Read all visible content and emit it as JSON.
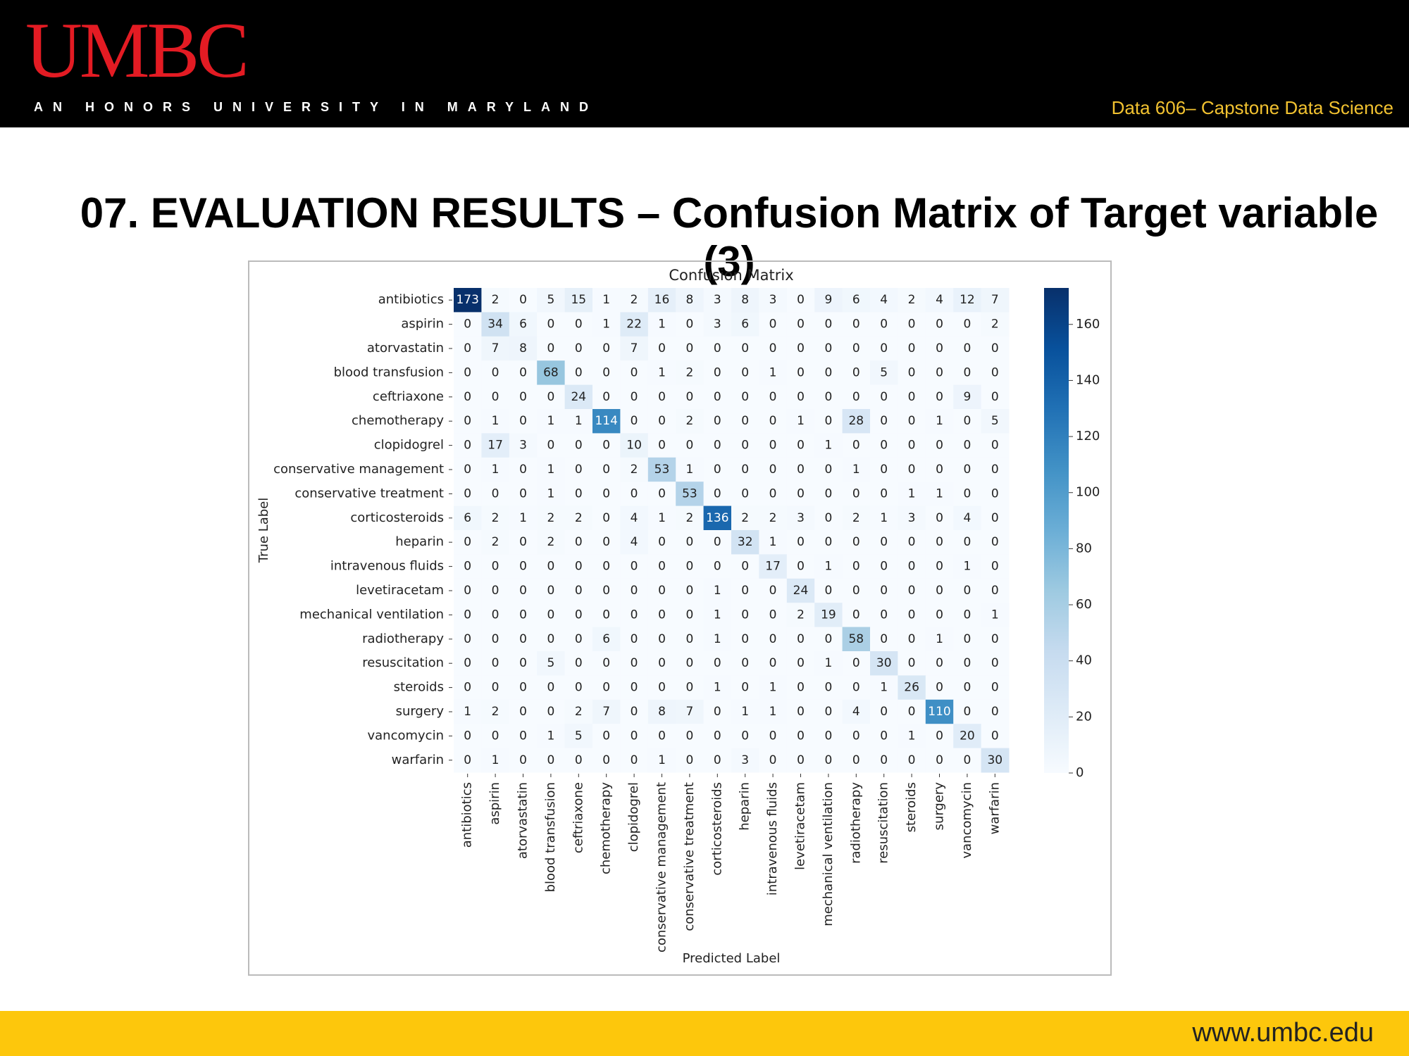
{
  "header": {
    "logo": "UMBC",
    "tagline": "AN HONORS UNIVERSITY IN MARYLAND",
    "course": "Data 606– Capstone Data Science"
  },
  "slide_title": "07. EVALUATION RESULTS – Confusion Matrix of Target variable (3)",
  "footer": {
    "url": "www.umbc.edu"
  },
  "chart_data": {
    "type": "heatmap",
    "title": "Confusion Matrix",
    "x_label": "Predicted Label",
    "y_label": "True Label",
    "cmap": "Blues",
    "categories": [
      "antibiotics",
      "aspirin",
      "atorvastatin",
      "blood transfusion",
      "ceftriaxone",
      "chemotherapy",
      "clopidogrel",
      "conservative management",
      "conservative treatment",
      "corticosteroids",
      "heparin",
      "intravenous fluids",
      "levetiracetam",
      "mechanical ventilation",
      "radiotherapy",
      "resuscitation",
      "steroids",
      "surgery",
      "vancomycin",
      "warfarin"
    ],
    "matrix": [
      [
        173,
        2,
        0,
        5,
        15,
        1,
        2,
        16,
        8,
        3,
        8,
        3,
        0,
        9,
        6,
        4,
        2,
        4,
        12,
        7
      ],
      [
        0,
        34,
        6,
        0,
        0,
        1,
        22,
        1,
        0,
        3,
        6,
        0,
        0,
        0,
        0,
        0,
        0,
        0,
        0,
        2
      ],
      [
        0,
        7,
        8,
        0,
        0,
        0,
        7,
        0,
        0,
        0,
        0,
        0,
        0,
        0,
        0,
        0,
        0,
        0,
        0,
        0
      ],
      [
        0,
        0,
        0,
        68,
        0,
        0,
        0,
        1,
        2,
        0,
        0,
        1,
        0,
        0,
        0,
        5,
        0,
        0,
        0,
        0
      ],
      [
        0,
        0,
        0,
        0,
        24,
        0,
        0,
        0,
        0,
        0,
        0,
        0,
        0,
        0,
        0,
        0,
        0,
        0,
        9,
        0
      ],
      [
        0,
        1,
        0,
        1,
        1,
        114,
        0,
        0,
        2,
        0,
        0,
        0,
        1,
        0,
        28,
        0,
        0,
        1,
        0,
        5
      ],
      [
        0,
        17,
        3,
        0,
        0,
        0,
        10,
        0,
        0,
        0,
        0,
        0,
        0,
        1,
        0,
        0,
        0,
        0,
        0,
        0
      ],
      [
        0,
        1,
        0,
        1,
        0,
        0,
        2,
        53,
        1,
        0,
        0,
        0,
        0,
        0,
        1,
        0,
        0,
        0,
        0,
        0
      ],
      [
        0,
        0,
        0,
        1,
        0,
        0,
        0,
        0,
        53,
        0,
        0,
        0,
        0,
        0,
        0,
        0,
        1,
        1,
        0,
        0
      ],
      [
        6,
        2,
        1,
        2,
        2,
        0,
        4,
        1,
        2,
        136,
        2,
        2,
        3,
        0,
        2,
        1,
        3,
        0,
        4,
        0
      ],
      [
        0,
        2,
        0,
        2,
        0,
        0,
        4,
        0,
        0,
        0,
        32,
        1,
        0,
        0,
        0,
        0,
        0,
        0,
        0,
        0
      ],
      [
        0,
        0,
        0,
        0,
        0,
        0,
        0,
        0,
        0,
        0,
        0,
        17,
        0,
        1,
        0,
        0,
        0,
        0,
        1,
        0
      ],
      [
        0,
        0,
        0,
        0,
        0,
        0,
        0,
        0,
        0,
        1,
        0,
        0,
        24,
        0,
        0,
        0,
        0,
        0,
        0,
        0
      ],
      [
        0,
        0,
        0,
        0,
        0,
        0,
        0,
        0,
        0,
        1,
        0,
        0,
        2,
        19,
        0,
        0,
        0,
        0,
        0,
        1
      ],
      [
        0,
        0,
        0,
        0,
        0,
        6,
        0,
        0,
        0,
        1,
        0,
        0,
        0,
        0,
        58,
        0,
        0,
        1,
        0,
        0
      ],
      [
        0,
        0,
        0,
        5,
        0,
        0,
        0,
        0,
        0,
        0,
        0,
        0,
        0,
        1,
        0,
        30,
        0,
        0,
        0,
        0
      ],
      [
        0,
        0,
        0,
        0,
        0,
        0,
        0,
        0,
        0,
        1,
        0,
        1,
        0,
        0,
        0,
        1,
        26,
        0,
        0,
        0
      ],
      [
        1,
        2,
        0,
        0,
        2,
        7,
        0,
        8,
        7,
        0,
        1,
        1,
        0,
        0,
        4,
        0,
        0,
        110,
        0,
        0
      ],
      [
        0,
        0,
        0,
        1,
        5,
        0,
        0,
        0,
        0,
        0,
        0,
        0,
        0,
        0,
        0,
        0,
        1,
        0,
        20,
        0
      ],
      [
        0,
        1,
        0,
        0,
        0,
        0,
        0,
        1,
        0,
        0,
        3,
        0,
        0,
        0,
        0,
        0,
        0,
        0,
        0,
        30
      ]
    ],
    "zlim": [
      0,
      173
    ],
    "zticks": [
      0,
      20,
      40,
      60,
      80,
      100,
      120,
      140,
      160
    ]
  }
}
